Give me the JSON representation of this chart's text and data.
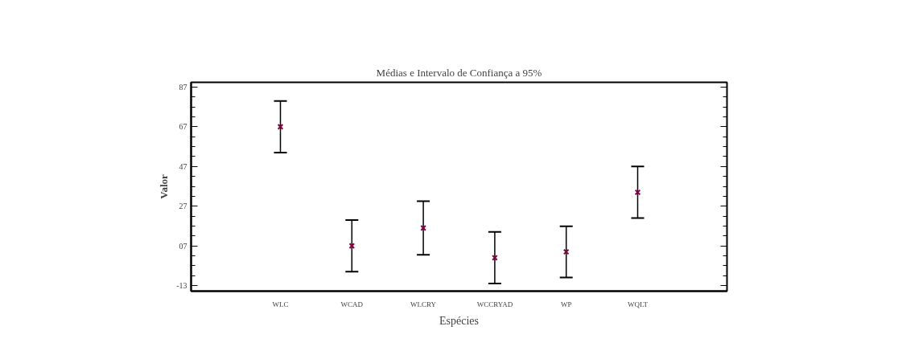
{
  "chart_data": {
    "type": "scatter",
    "title": "Médias e Intervalo de Confiança a 95%",
    "xlabel": "Espécies",
    "ylabel": "Valor",
    "categories": [
      "WLC",
      "WCAD",
      "WLCRY",
      "WCCRYAD",
      "WP",
      "WQLT"
    ],
    "series": [
      {
        "color": "#800040",
        "values": [
          67,
          7,
          16,
          1,
          4,
          34
        ],
        "errors": [
          13,
          13,
          13.5,
          13,
          12.9,
          13
        ]
      }
    ],
    "marker": "cross",
    "ylim": [
      -15.8,
      89.4
    ],
    "yticks": [
      {
        "value": -13,
        "label": "-13"
      },
      {
        "value": 7,
        "label": "07"
      },
      27,
      47,
      67,
      87
    ],
    "grid": false
  }
}
